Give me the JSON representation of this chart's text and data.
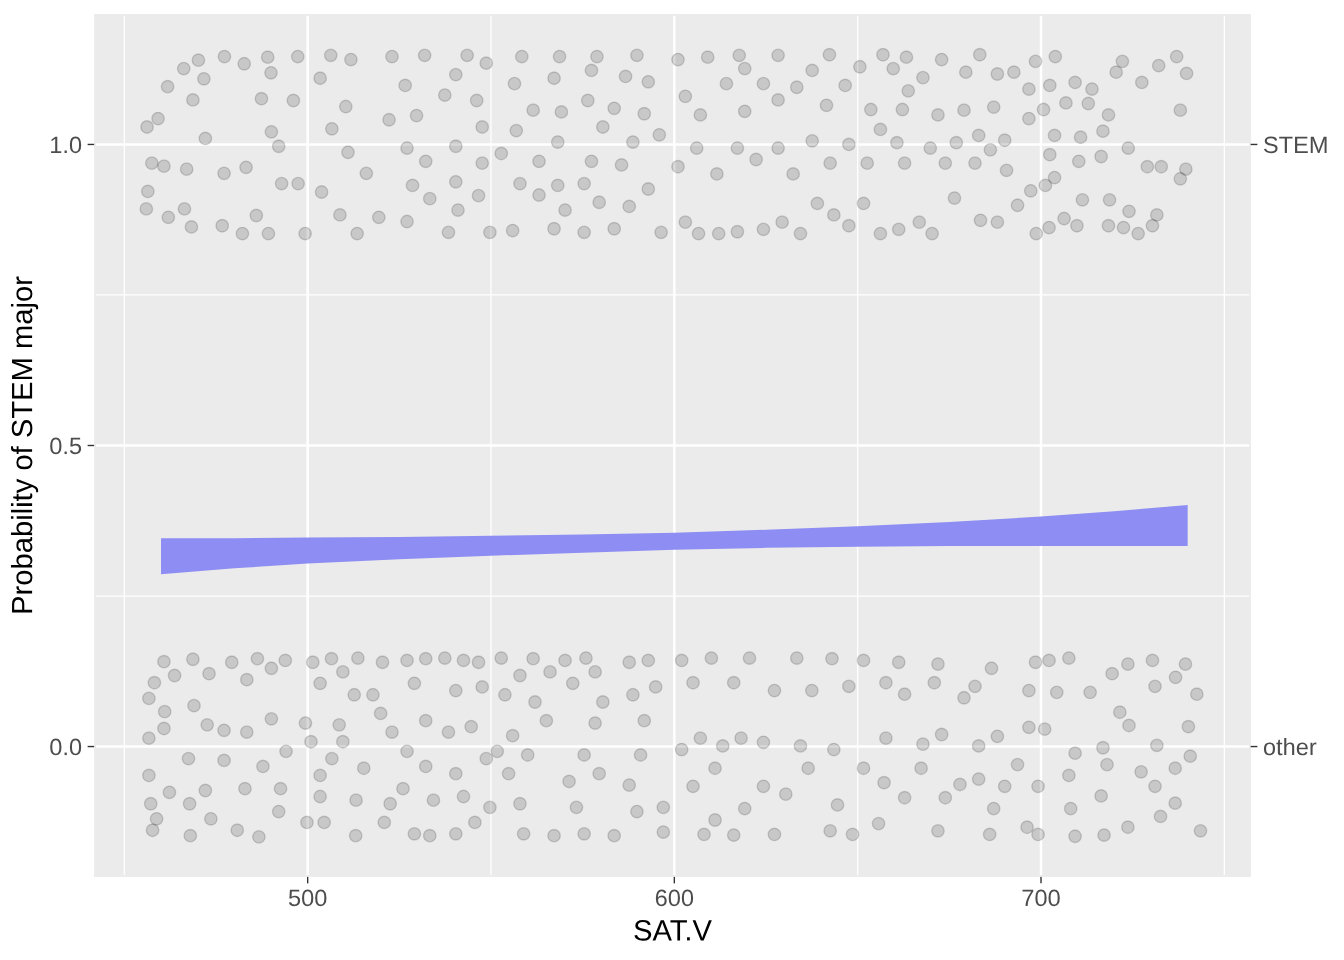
{
  "chart_data": {
    "type": "scatter",
    "xlabel": "SAT.V",
    "ylabel": "Probability of STEM major",
    "xlim": [
      442,
      757
    ],
    "ylim": [
      -0.215,
      1.215
    ],
    "xticks": [
      {
        "value": 450,
        "label": null
      },
      500,
      {
        "value": 550,
        "label": null
      },
      600,
      {
        "value": 650,
        "label": null
      },
      700,
      {
        "value": 750,
        "label": null
      }
    ],
    "yticks": [
      {
        "value": 0,
        "label": "0.0"
      },
      {
        "value": 0.25,
        "label": null
      },
      {
        "value": 0.5,
        "label": "0.5"
      },
      {
        "value": 0.75,
        "label": null
      },
      {
        "value": 1,
        "label": "1.0"
      }
    ],
    "y2_categories": [
      "STEM",
      "other"
    ],
    "grid": true,
    "series": [
      {
        "color": "#000000",
        "marker": "circle",
        "x": [
          456.2,
          459.2,
          461.8,
          466.2,
          470.2,
          477.3,
          457.5,
          460.8,
          467.0,
          456.4,
          456.0,
          462.0,
          466.4,
          468.3,
          476.7,
          482.2,
          489.3,
          486.0,
          483.2,
          477.2,
          472.1,
          468.7,
          471.7,
          482.7,
          489.1,
          497.3,
          490.0,
          487.4,
          490.1,
          492.1,
          492.9,
          496.1,
          497.4,
          499.3,
          506.3,
          511.8,
          503.4,
          510.4,
          506.6,
          511.0,
          516.0,
          503.8,
          508.8,
          513.5,
          519.4,
          523.0,
          531.9,
          526.6,
          522.2,
          529.7,
          527.1,
          532.2,
          528.6,
          533.3,
          527.1,
          538.4,
          541.0,
          546.6,
          549.7,
          540.4,
          540.4,
          547.6,
          547.6,
          546.1,
          537.4,
          543.5,
          548.7,
          540.4,
          558.4,
          568.7,
          578.9,
          589.8,
          556.4,
          567.2,
          577.4,
          586.7,
          592.9,
          561.5,
          569.2,
          576.4,
          583.6,
          591.8,
          556.9,
          568.2,
          580.5,
          588.7,
          595.9,
          552.8,
          563.1,
          577.4,
          585.6,
          557.9,
          568.2,
          575.4,
          592.9,
          563.1,
          570.2,
          579.5,
          587.7,
          555.9,
          567.2,
          575.4,
          583.6,
          596.4
        ],
        "values": [
          1.029,
          1.043,
          1.096,
          1.126,
          1.14,
          1.146,
          0.969,
          0.964,
          0.959,
          0.922,
          0.893,
          0.879,
          0.893,
          0.863,
          0.865,
          0.852,
          0.852,
          0.882,
          0.962,
          0.952,
          1.01,
          1.074,
          1.109,
          1.134,
          1.145,
          1.146,
          1.119,
          1.076,
          1.021,
          0.997,
          0.935,
          1.073,
          0.935,
          0.852,
          1.148,
          1.141,
          1.11,
          1.063,
          1.026,
          0.987,
          0.952,
          0.921,
          0.883,
          0.852,
          0.879,
          1.146,
          1.148,
          1.098,
          1.041,
          1.048,
          0.994,
          0.972,
          0.932,
          0.91,
          0.872,
          0.854,
          0.891,
          0.915,
          0.854,
          0.938,
          0.997,
          0.969,
          1.029,
          1.073,
          1.082,
          1.148,
          1.135,
          1.116,
          1.146,
          1.146,
          1.146,
          1.148,
          1.101,
          1.11,
          1.123,
          1.113,
          1.104,
          1.057,
          1.054,
          1.073,
          1.06,
          1.051,
          1.023,
          1.004,
          1.029,
          1.004,
          1.016,
          0.985,
          0.972,
          0.972,
          0.966,
          0.935,
          0.932,
          0.935,
          0.926,
          0.916,
          0.891,
          0.904,
          0.897,
          0.857,
          0.86,
          0.854,
          0.86,
          0.854
        ]
      },
      {
        "color": "#000000",
        "marker": "circle",
        "x": [
          601.0,
          609.1,
          617.7,
          628.3,
          642.3,
          614.2,
          624.3,
          633.4,
          646.6,
          603.0,
          619.2,
          637.6,
          607.1,
          619.2,
          628.3,
          641.5,
          606.1,
          617.2,
          628.3,
          637.6,
          647.6,
          611.6,
          622.3,
          632.4,
          642.5,
          601.0,
          606.6,
          612.1,
          624.3,
          629.4,
          634.4,
          639.0,
          643.5,
          647.6,
          603.0,
          617.2,
          656.9,
          663.3,
          672.9,
          683.3,
          698.5,
          650.6,
          659.7,
          667.8,
          679.5,
          688.1,
          692.6,
          696.7,
          663.8,
          653.6,
          662.2,
          671.9,
          679.0,
          687.1,
          696.7,
          656.2,
          660.7,
          669.8,
          676.9,
          683.0,
          690.1,
          686.2,
          652.6,
          662.8,
          673.9,
          682.0,
          690.6,
          697.2,
          651.6,
          656.2,
          661.2,
          666.8,
          670.3,
          676.4,
          683.5,
          688.1,
          693.6,
          698.7,
          703.9,
          722.2,
          737.0,
          739.7,
          732.1,
          727.5,
          720.5,
          709.3,
          713.9,
          702.4,
          738.0,
          718.4,
          712.9,
          706.8,
          700.7,
          723.8,
          716.9,
          710.8,
          703.7,
          702.4,
          739.5,
          738.0,
          732.8,
          729.0,
          716.4,
          710.3,
          703.7,
          701.2,
          731.6,
          730.4,
          726.5,
          722.5,
          718.4,
          724.0,
          718.7,
          711.3,
          706.3,
          702.2,
          709.8
        ],
        "values": [
          1.141,
          1.145,
          1.148,
          1.148,
          1.149,
          1.101,
          1.101,
          1.095,
          1.098,
          1.08,
          1.126,
          1.123,
          1.049,
          1.055,
          1.074,
          1.065,
          0.994,
          0.994,
          0.994,
          1.006,
          1.0,
          0.951,
          0.975,
          0.951,
          0.969,
          0.963,
          0.852,
          0.852,
          0.859,
          0.871,
          0.852,
          0.902,
          0.883,
          0.865,
          0.871,
          0.855,
          1.149,
          1.145,
          1.141,
          1.149,
          1.138,
          1.129,
          1.126,
          1.111,
          1.12,
          1.117,
          1.12,
          1.092,
          1.089,
          1.058,
          1.058,
          1.049,
          1.057,
          1.062,
          1.043,
          1.025,
          1.003,
          0.994,
          1.003,
          1.015,
          1.007,
          0.991,
          0.969,
          0.969,
          0.969,
          0.969,
          0.957,
          0.923,
          0.902,
          0.852,
          0.859,
          0.871,
          0.852,
          0.911,
          0.874,
          0.871,
          0.899,
          0.852,
          1.146,
          1.138,
          1.146,
          1.118,
          1.131,
          1.103,
          1.12,
          1.103,
          1.092,
          1.098,
          1.057,
          1.049,
          1.068,
          1.069,
          1.058,
          0.994,
          1.022,
          1.012,
          1.015,
          0.983,
          0.959,
          0.943,
          0.963,
          0.963,
          0.98,
          0.972,
          0.945,
          0.932,
          0.883,
          0.865,
          0.852,
          0.862,
          0.865,
          0.889,
          0.908,
          0.908,
          0.877,
          0.862,
          0.865
        ]
      },
      {
        "color": "#000000",
        "marker": "circle",
        "x": [
          460.8,
          468.7,
          479.3,
          486.3,
          493.9,
          458.2,
          456.7,
          463.7,
          473.1,
          483.4,
          490.1,
          461.0,
          469.0,
          472.6,
          460.8,
          456.7,
          477.2,
          483.4,
          490.1,
          499.4,
          494.1,
          487.8,
          477.2,
          467.5,
          456.7,
          462.3,
          472.1,
          482.9,
          492.6,
          457.2,
          458.8,
          457.7,
          467.8,
          468.0,
          473.6,
          480.8,
          486.7,
          492.1,
          499.8,
          501.4,
          506.5,
          513.7,
          509.6,
          503.4,
          512.7,
          517.8,
          520.4,
          519.9,
          508.6,
          500.9,
          509.6,
          523.0,
          506.6,
          515.3,
          503.4,
          503.4,
          513.2,
          522.5,
          504.5,
          513.1,
          520.9,
          527.1,
          532.2,
          537.4,
          542.5,
          546.6,
          529.1,
          540.4,
          547.6,
          532.2,
          538.4,
          544.6,
          527.1,
          532.2,
          540.4,
          548.7,
          526.0,
          534.3,
          542.5,
          549.7,
          529.1,
          533.3,
          540.4,
          545.6,
          552.8,
          561.5,
          570.2,
          575.9,
          587.7,
          592.9,
          578.4,
          572.3,
          566.1,
          557.9,
          553.8,
          562.0,
          580.5,
          588.7,
          594.9,
          591.8,
          578.4,
          565.1,
          555.9,
          551.7,
          560.0,
          575.4,
          590.8,
          554.8,
          571.3,
          579.5,
          587.7,
          557.9,
          573.3,
          589.8,
          597.0,
          558.9,
          567.2,
          575.4,
          583.6,
          597.0
        ],
        "values": [
          0.141,
          0.145,
          0.14,
          0.146,
          0.143,
          0.106,
          0.08,
          0.118,
          0.121,
          0.111,
          0.13,
          0.058,
          0.068,
          0.036,
          0.03,
          0.014,
          0.027,
          0.024,
          0.046,
          0.039,
          -0.008,
          -0.033,
          -0.023,
          -0.02,
          -0.048,
          -0.076,
          -0.073,
          -0.07,
          -0.07,
          -0.095,
          -0.12,
          -0.139,
          -0.095,
          -0.148,
          -0.12,
          -0.139,
          -0.15,
          -0.108,
          -0.126,
          0.14,
          0.146,
          0.147,
          0.124,
          0.105,
          0.086,
          0.086,
          0.14,
          0.055,
          0.036,
          0.008,
          0.008,
          0.024,
          -0.02,
          -0.036,
          -0.048,
          -0.083,
          -0.089,
          -0.095,
          -0.126,
          -0.148,
          -0.126,
          0.143,
          0.146,
          0.147,
          0.143,
          0.14,
          0.105,
          0.093,
          0.099,
          0.043,
          0.024,
          0.033,
          -0.008,
          -0.033,
          -0.045,
          -0.02,
          -0.07,
          -0.089,
          -0.083,
          -0.101,
          -0.145,
          -0.148,
          -0.145,
          -0.126,
          0.147,
          0.146,
          0.143,
          0.147,
          0.14,
          0.143,
          0.124,
          0.105,
          0.124,
          0.118,
          0.086,
          0.074,
          0.074,
          0.086,
          0.099,
          0.043,
          0.039,
          0.043,
          0.018,
          -0.008,
          -0.014,
          -0.014,
          -0.014,
          -0.045,
          -0.058,
          -0.045,
          -0.064,
          -0.095,
          -0.101,
          -0.108,
          -0.101,
          -0.145,
          -0.148,
          -0.145,
          -0.148,
          -0.142
        ]
      },
      {
        "color": "#000000",
        "marker": "circle",
        "x": [
          602.0,
          610.1,
          620.5,
          633.4,
          643.0,
          605.1,
          616.2,
          627.3,
          637.5,
          647.6,
          602.0,
          613.2,
          624.3,
          634.4,
          643.5,
          607.1,
          618.2,
          611.1,
          624.3,
          636.5,
          605.1,
          644.5,
          619.2,
          630.4,
          608.1,
          616.2,
          627.3,
          642.5,
          648.6,
          611.1,
          651.6,
          661.2,
          671.9,
          686.5,
          698.5,
          657.7,
          670.9,
          682.0,
          696.7,
          662.8,
          679.0,
          688.1,
          696.7,
          672.9,
          657.7,
          667.8,
          683.0,
          651.6,
          667.3,
          683.0,
          693.6,
          657.2,
          677.9,
          690.1,
          662.8,
          673.9,
          687.1,
          655.7,
          671.9,
          686.0,
          699.2,
          696.2,
          702.2,
          707.6,
          719.4,
          723.7,
          730.4,
          736.7,
          739.4,
          742.5,
          731.1,
          721.5,
          713.4,
          704.3,
          740.2,
          740.7,
          731.6,
          724.0,
          716.9,
          709.3,
          701.0,
          736.6,
          727.3,
          718.0,
          707.6,
          731.1,
          716.4,
          736.6,
          708.1,
          723.7,
          717.2,
          709.3,
          743.5,
          732.6,
          699.2
        ],
        "values": [
          0.143,
          0.147,
          0.147,
          0.147,
          0.146,
          0.106,
          0.106,
          0.093,
          0.093,
          0.1,
          -0.005,
          0.001,
          0.007,
          0.001,
          -0.005,
          0.014,
          0.014,
          -0.036,
          -0.066,
          -0.036,
          -0.066,
          -0.097,
          -0.103,
          -0.079,
          -0.146,
          -0.147,
          -0.146,
          -0.14,
          -0.146,
          -0.122,
          0.143,
          0.14,
          0.137,
          0.13,
          0.14,
          0.106,
          0.106,
          0.1,
          0.093,
          0.087,
          0.081,
          0.017,
          0.032,
          0.02,
          0.014,
          0.004,
          0.001,
          -0.036,
          -0.036,
          -0.054,
          -0.03,
          -0.06,
          -0.063,
          -0.066,
          -0.085,
          -0.085,
          -0.103,
          -0.128,
          -0.14,
          -0.146,
          -0.146,
          -0.134,
          0.143,
          0.147,
          0.121,
          0.137,
          0.143,
          0.115,
          0.137,
          0.087,
          0.1,
          0.057,
          0.09,
          0.09,
          0.033,
          -0.016,
          0.002,
          0.035,
          -0.002,
          -0.011,
          0.029,
          -0.036,
          -0.042,
          -0.03,
          -0.048,
          -0.066,
          -0.082,
          -0.094,
          -0.103,
          -0.134,
          -0.147,
          -0.149,
          -0.14,
          -0.116,
          -0.066
        ]
      },
      {
        "type": "line",
        "color": "#8d8df3",
        "x": [
          460,
          480,
          500,
          525,
          550,
          575,
          600,
          625,
          650,
          675,
          700,
          720,
          740
        ],
        "values": [
          null,
          null,
          null,
          null,
          null,
          null,
          null,
          null,
          null,
          null,
          null,
          null,
          null
        ],
        "lower": [
          0.286,
          0.296,
          0.304,
          0.311,
          0.317,
          0.322,
          0.327,
          0.33,
          0.332,
          0.333,
          0.333,
          0.333,
          0.333
        ],
        "upper": [
          0.346,
          0.346,
          0.347,
          0.348,
          0.35,
          0.352,
          0.355,
          0.36,
          0.366,
          0.373,
          0.382,
          0.391,
          0.401
        ]
      }
    ]
  }
}
